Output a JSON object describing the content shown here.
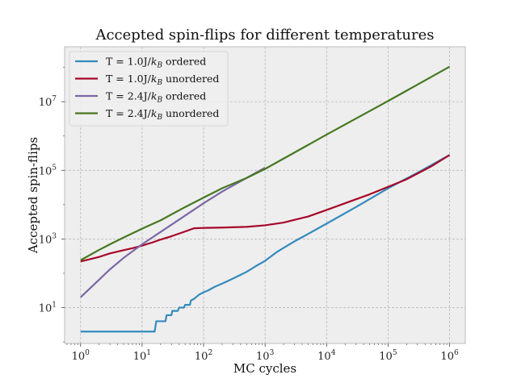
{
  "chart_data": {
    "type": "line",
    "title": "Accepted spin-flips for different temperatures",
    "xlabel": "MC cycles",
    "ylabel": "Accepted spin-flips",
    "xscale": "log",
    "yscale": "log",
    "xlim": [
      0.55,
      1800000
    ],
    "ylim": [
      0.9,
      400000000
    ],
    "grid": true,
    "legend_position": "top-left",
    "x_ticks": [
      {
        "base": "10",
        "exp": "0",
        "value": 1
      },
      {
        "base": "10",
        "exp": "1",
        "value": 10
      },
      {
        "base": "10",
        "exp": "2",
        "value": 100
      },
      {
        "base": "10",
        "exp": "3",
        "value": 1000
      },
      {
        "base": "10",
        "exp": "4",
        "value": 10000
      },
      {
        "base": "10",
        "exp": "5",
        "value": 100000
      },
      {
        "base": "10",
        "exp": "6",
        "value": 1000000
      }
    ],
    "y_ticks": [
      {
        "base": "10",
        "exp": "1",
        "value": 10
      },
      {
        "base": "10",
        "exp": "3",
        "value": 1000
      },
      {
        "base": "10",
        "exp": "5",
        "value": 100000
      },
      {
        "base": "10",
        "exp": "7",
        "value": 10000000
      }
    ],
    "series": [
      {
        "name": "T = 1.0J/k_B ordered",
        "legend_main": "T = 1.0J/",
        "legend_math": "k",
        "legend_sub": "B",
        "legend_tail": " ordered",
        "color": "#348abd",
        "x": [
          1,
          16,
          17,
          24,
          25,
          30,
          31,
          38,
          40,
          48,
          50,
          60,
          62,
          70,
          75,
          85,
          100,
          120,
          150,
          200,
          250,
          300,
          400,
          500,
          700,
          1000,
          1500,
          2000,
          3000,
          5000,
          10000,
          30000,
          100000,
          300000,
          1000000
        ],
        "y": [
          2,
          2,
          4,
          4,
          6,
          6,
          8,
          8,
          10,
          10,
          12,
          12,
          16,
          18,
          20,
          24,
          28,
          32,
          40,
          50,
          60,
          70,
          90,
          110,
          160,
          230,
          400,
          550,
          850,
          1400,
          2800,
          8500,
          30000,
          85000,
          280000
        ]
      },
      {
        "name": "T = 1.0J/k_B unordered",
        "legend_main": "T = 1.0J/",
        "legend_math": "k",
        "legend_sub": "B",
        "legend_tail": " unordered",
        "color": "#a60628",
        "x": [
          1,
          2,
          3,
          5,
          7,
          10,
          15,
          20,
          30,
          50,
          70,
          100,
          200,
          500,
          1000,
          2000,
          3000,
          5000,
          10000,
          20000,
          50000,
          100000,
          200000,
          500000,
          1000000
        ],
        "y": [
          220,
          300,
          380,
          470,
          540,
          640,
          800,
          960,
          1200,
          1650,
          2050,
          2100,
          2150,
          2250,
          2500,
          3000,
          3600,
          4500,
          7000,
          11000,
          20000,
          33000,
          55000,
          130000,
          280000
        ]
      },
      {
        "name": "T = 2.4J/k_B ordered",
        "legend_main": "T = 2.4J/",
        "legend_math": "k",
        "legend_sub": "B",
        "legend_tail": " ordered",
        "color": "#7a68a6",
        "x": [
          1,
          2,
          3,
          5,
          10,
          20,
          50,
          100,
          200,
          500,
          1000
        ],
        "y": [
          20,
          65,
          130,
          280,
          700,
          1600,
          4800,
          11000,
          24000,
          60000,
          120000
        ]
      },
      {
        "name": "T = 2.4J/k_B unordered",
        "legend_main": "T = 2.4J/",
        "legend_math": "k",
        "legend_sub": "B",
        "legend_tail": " unordered",
        "color": "#467821",
        "x": [
          1,
          2,
          3,
          5,
          10,
          20,
          50,
          100,
          200,
          500,
          1000,
          10000,
          100000,
          1000000
        ],
        "y": [
          240,
          480,
          700,
          1100,
          2000,
          3500,
          8500,
          16000,
          30000,
          60000,
          110000,
          1100000,
          10500000,
          105000000
        ]
      }
    ]
  }
}
